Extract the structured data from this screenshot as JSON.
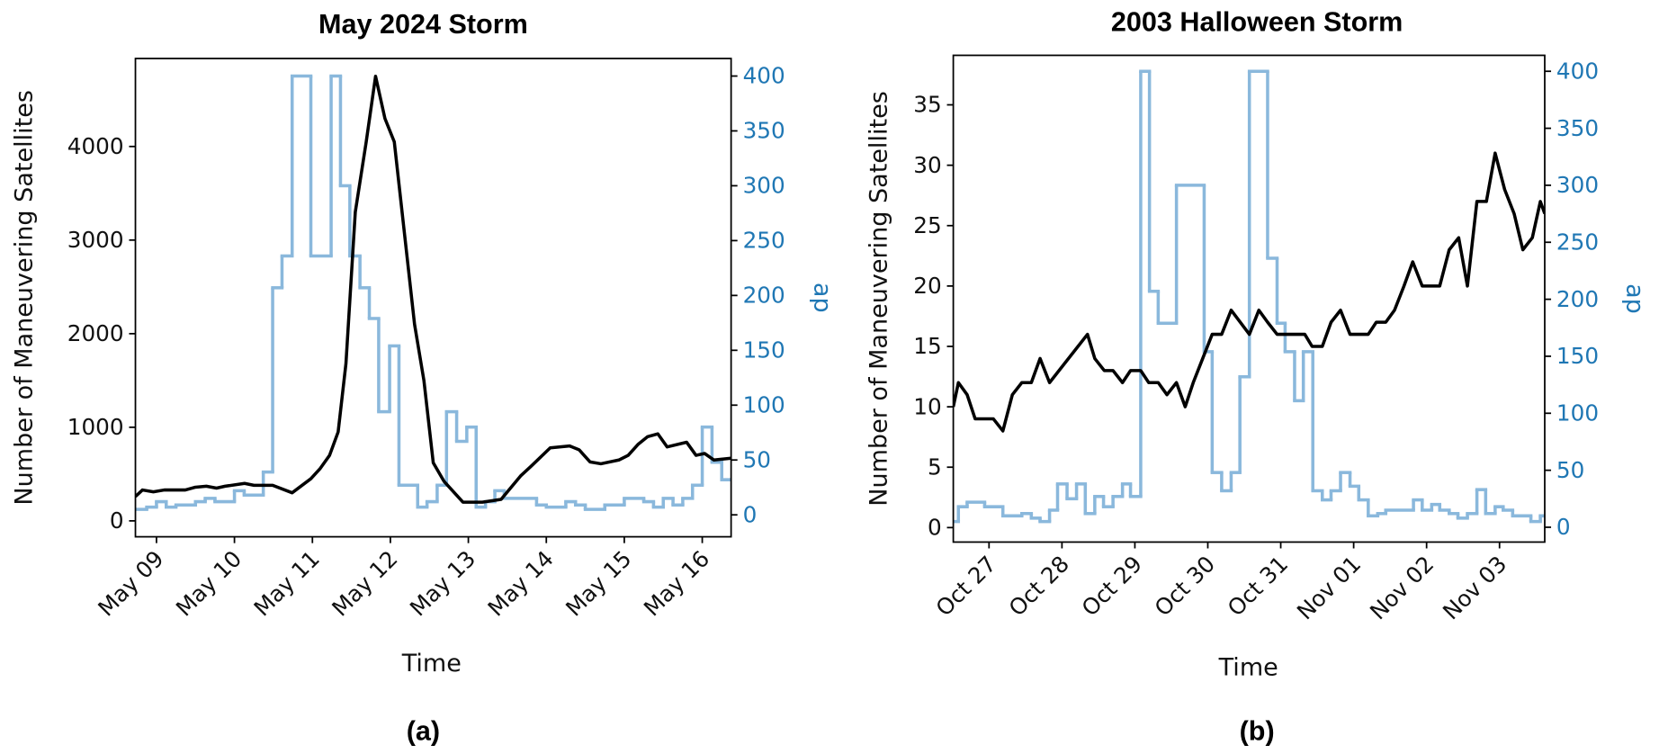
{
  "chart_data": [
    {
      "type": "line",
      "title": "May 2024 Storm",
      "caption": "(a)",
      "xlabel": "Time",
      "ylabel": "Number of Maneuvering Satellites",
      "y2label": "ap",
      "xlim": [
        8.73,
        16.37
      ],
      "xticks": [
        {
          "value": 9,
          "label": "May 09"
        },
        {
          "value": 10,
          "label": "May 10"
        },
        {
          "value": 11,
          "label": "May 11"
        },
        {
          "value": 12,
          "label": "May 12"
        },
        {
          "value": 13,
          "label": "May 13"
        },
        {
          "value": 14,
          "label": "May 14"
        },
        {
          "value": 15,
          "label": "May 15"
        },
        {
          "value": 16,
          "label": "May 16"
        }
      ],
      "ylim": [
        -170,
        4940
      ],
      "yticks": [
        0,
        1000,
        2000,
        3000,
        4000
      ],
      "y2lim": [
        -20,
        416
      ],
      "y2ticks": [
        0,
        50,
        100,
        150,
        200,
        250,
        300,
        350,
        400
      ],
      "series": [
        {
          "color": "#000000",
          "x": [
            8.73,
            8.82,
            8.96,
            9.1,
            9.37,
            9.5,
            9.64,
            9.77,
            9.88,
            10.13,
            10.25,
            10.49,
            10.74,
            10.98,
            11.1,
            11.22,
            11.33,
            11.43,
            11.55,
            11.69,
            11.81,
            11.93,
            12.05,
            12.31,
            12.43,
            12.55,
            12.69,
            12.93,
            13.18,
            13.42,
            13.67,
            13.8,
            14.05,
            14.3,
            14.42,
            14.56,
            14.7,
            14.93,
            15.05,
            15.18,
            15.3,
            15.43,
            15.55,
            15.8,
            15.92,
            16.03,
            16.15,
            16.37
          ],
          "values": [
            260,
            330,
            310,
            330,
            330,
            360,
            370,
            350,
            370,
            400,
            380,
            380,
            300,
            450,
            560,
            700,
            950,
            1680,
            3300,
            4050,
            4750,
            4300,
            4050,
            2100,
            1500,
            620,
            420,
            200,
            200,
            230,
            480,
            580,
            780,
            800,
            760,
            630,
            610,
            650,
            700,
            820,
            900,
            930,
            790,
            840,
            700,
            720,
            650,
            670
          ]
        },
        {
          "color": "#8ab8dc",
          "axis": "y2",
          "drawstyle": "steps-post",
          "x": [
            8.73,
            8.875,
            9.0,
            9.125,
            9.25,
            9.5,
            9.625,
            9.75,
            10.0,
            10.125,
            10.25,
            10.37,
            10.49,
            10.61,
            10.74,
            10.98,
            11.24,
            11.36,
            11.48,
            11.61,
            11.73,
            11.85,
            11.99,
            12.11,
            12.35,
            12.47,
            12.6,
            12.72,
            12.85,
            12.98,
            13.1,
            13.22,
            13.34,
            13.46,
            13.875,
            14.0,
            14.25,
            14.375,
            14.5,
            14.75,
            15.0,
            15.25,
            15.375,
            15.5,
            15.625,
            15.75,
            15.875,
            16.0,
            16.125,
            16.25,
            16.37
          ],
          "values": [
            5,
            7,
            12,
            7,
            9,
            12,
            15,
            12,
            22,
            18,
            18,
            39,
            207,
            236,
            400,
            236,
            400,
            300,
            236,
            207,
            179,
            94,
            154,
            27,
            7,
            12,
            27,
            94,
            67,
            80,
            7,
            12,
            22,
            15,
            9,
            7,
            12,
            9,
            5,
            9,
            15,
            12,
            7,
            15,
            9,
            15,
            27,
            80,
            48,
            32,
            32
          ]
        }
      ]
    },
    {
      "type": "line",
      "title": "2003 Halloween Storm",
      "caption": "(b)",
      "xlabel": "Time",
      "ylabel": "Number of Maneuvering Satellites",
      "y2label": "ap",
      "xlim": [
        26.51,
        34.62
      ],
      "xticks": [
        {
          "value": 27,
          "label": "Oct 27"
        },
        {
          "value": 28,
          "label": "Oct 28"
        },
        {
          "value": 29,
          "label": "Oct 29"
        },
        {
          "value": 30,
          "label": "Oct 30"
        },
        {
          "value": 31,
          "label": "Oct 31"
        },
        {
          "value": 32,
          "label": "Nov 01"
        },
        {
          "value": 33,
          "label": "Nov 02"
        },
        {
          "value": 34,
          "label": "Nov 03"
        }
      ],
      "ylim": [
        -1.2,
        39.1
      ],
      "yticks": [
        0,
        5,
        10,
        15,
        20,
        25,
        30,
        35
      ],
      "y2lim": [
        -13,
        414
      ],
      "y2ticks": [
        0,
        50,
        100,
        150,
        200,
        250,
        300,
        350,
        400
      ],
      "series": [
        {
          "color": "#000000",
          "x": [
            26.51,
            26.58,
            26.7,
            26.81,
            27.06,
            27.19,
            27.32,
            27.45,
            27.58,
            27.7,
            27.83,
            28.35,
            28.45,
            28.58,
            28.7,
            28.83,
            28.94,
            29.08,
            29.19,
            29.32,
            29.44,
            29.57,
            29.69,
            29.8,
            29.93,
            30.06,
            30.19,
            30.32,
            30.57,
            30.7,
            30.82,
            30.95,
            31.33,
            31.43,
            31.57,
            31.69,
            31.82,
            31.95,
            32.2,
            32.31,
            32.44,
            32.56,
            32.69,
            32.81,
            32.94,
            33.18,
            33.31,
            33.44,
            33.56,
            33.69,
            33.82,
            33.94,
            34.07,
            34.2,
            34.32,
            34.45,
            34.56,
            34.62
          ],
          "values": [
            10,
            12,
            11,
            9,
            9,
            8,
            11,
            12,
            12,
            14,
            12,
            16,
            14,
            13,
            13,
            12,
            13,
            13,
            12,
            12,
            11,
            12,
            10,
            12,
            14,
            16,
            16,
            18,
            16,
            18,
            17,
            16,
            16,
            15,
            15,
            17,
            18,
            16,
            16,
            17,
            17,
            18,
            20,
            22,
            20,
            20,
            23,
            24,
            20,
            27,
            27,
            31,
            28,
            26,
            23,
            24,
            27,
            26
          ]
        },
        {
          "color": "#8ab8dc",
          "axis": "y2",
          "drawstyle": "steps-post",
          "x": [
            26.51,
            26.58,
            26.7,
            26.94,
            27.19,
            27.45,
            27.58,
            27.7,
            27.83,
            27.94,
            28.07,
            28.2,
            28.32,
            28.45,
            28.57,
            28.7,
            28.83,
            28.94,
            29.08,
            29.2,
            29.32,
            29.57,
            29.95,
            30.06,
            30.19,
            30.32,
            30.44,
            30.57,
            30.82,
            30.95,
            31.06,
            31.19,
            31.31,
            31.44,
            31.57,
            31.69,
            31.82,
            31.95,
            32.07,
            32.2,
            32.33,
            32.44,
            32.82,
            32.94,
            33.07,
            33.18,
            33.31,
            33.43,
            33.56,
            33.69,
            33.81,
            33.94,
            34.05,
            34.18,
            34.43,
            34.56,
            34.62
          ],
          "values": [
            5,
            18,
            22,
            18,
            10,
            12,
            8,
            5,
            15,
            38,
            25,
            38,
            12,
            27,
            18,
            27,
            38,
            27,
            400,
            207,
            179,
            300,
            154,
            48,
            32,
            48,
            132,
            400,
            236,
            179,
            154,
            111,
            154,
            32,
            24,
            32,
            48,
            36,
            24,
            10,
            12,
            15,
            24,
            15,
            20,
            15,
            12,
            8,
            12,
            33,
            12,
            18,
            15,
            10,
            5,
            10,
            10
          ]
        }
      ]
    }
  ]
}
